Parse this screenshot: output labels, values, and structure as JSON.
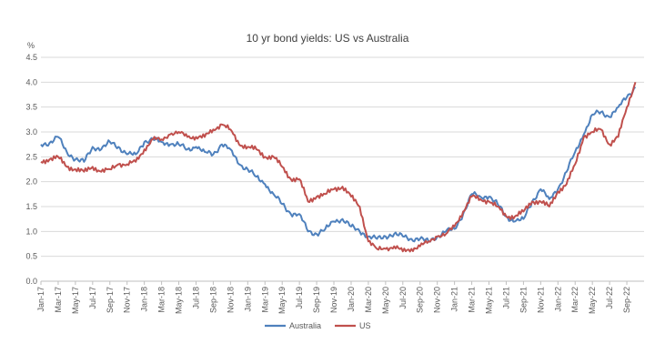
{
  "chart_data": {
    "type": "line",
    "title": "10 yr bond yields: US vs Australia",
    "ylabel": "%",
    "xlabel": "",
    "ylim": [
      0,
      4.5
    ],
    "yticks": [
      "0.0",
      "0.5",
      "1.0",
      "1.5",
      "2.0",
      "2.5",
      "3.0",
      "3.5",
      "4.0",
      "4.5"
    ],
    "x_start": "Jan-17",
    "x_end": "Nov-22",
    "xticks": [
      "Jan-17",
      "Mar-17",
      "May-17",
      "Jul-17",
      "Sep-17",
      "Nov-17",
      "Jan-18",
      "Mar-18",
      "May-18",
      "Jul-18",
      "Sep-18",
      "Nov-18",
      "Jan-19",
      "Mar-19",
      "May-19",
      "Jul-19",
      "Sep-19",
      "Nov-19",
      "Jan-20",
      "Mar-20",
      "May-20",
      "Jul-20",
      "Sep-20",
      "Nov-20",
      "Jan-21",
      "Mar-21",
      "May-21",
      "Jul-21",
      "Sep-21",
      "Nov-21",
      "Jan-22",
      "Mar-22",
      "May-22",
      "Jul-22",
      "Sep-22"
    ],
    "grid": true,
    "legend_position": "bottom",
    "series": [
      {
        "name": "Australia",
        "color": "#4F81BD",
        "x": [
          "Jan-17",
          "Feb-17",
          "Mar-17",
          "Apr-17",
          "May-17",
          "Jun-17",
          "Jul-17",
          "Aug-17",
          "Sep-17",
          "Oct-17",
          "Nov-17",
          "Dec-17",
          "Jan-18",
          "Feb-18",
          "Mar-18",
          "Apr-18",
          "May-18",
          "Jun-18",
          "Jul-18",
          "Aug-18",
          "Sep-18",
          "Oct-18",
          "Nov-18",
          "Dec-18",
          "Jan-19",
          "Feb-19",
          "Mar-19",
          "Apr-19",
          "May-19",
          "Jun-19",
          "Jul-19",
          "Aug-19",
          "Sep-19",
          "Oct-19",
          "Nov-19",
          "Dec-19",
          "Jan-20",
          "Feb-20",
          "Mar-20",
          "Apr-20",
          "May-20",
          "Jun-20",
          "Jul-20",
          "Aug-20",
          "Sep-20",
          "Oct-20",
          "Nov-20",
          "Dec-20",
          "Jan-21",
          "Feb-21",
          "Mar-21",
          "Apr-21",
          "May-21",
          "Jun-21",
          "Jul-21",
          "Aug-21",
          "Sep-21",
          "Oct-21",
          "Nov-21",
          "Dec-21",
          "Jan-22",
          "Feb-22",
          "Mar-22",
          "Apr-22",
          "May-22",
          "Jun-22",
          "Jul-22",
          "Aug-22",
          "Sep-22",
          "Oct-22"
        ],
        "values": [
          2.75,
          2.78,
          2.9,
          2.6,
          2.45,
          2.4,
          2.7,
          2.65,
          2.8,
          2.7,
          2.55,
          2.55,
          2.8,
          2.85,
          2.8,
          2.75,
          2.75,
          2.65,
          2.7,
          2.6,
          2.55,
          2.75,
          2.65,
          2.35,
          2.25,
          2.1,
          1.95,
          1.75,
          1.55,
          1.35,
          1.35,
          1.0,
          0.95,
          1.05,
          1.2,
          1.25,
          1.1,
          1.0,
          0.9,
          0.85,
          0.9,
          0.95,
          0.9,
          0.85,
          0.85,
          0.8,
          0.9,
          1.0,
          1.05,
          1.35,
          1.75,
          1.7,
          1.7,
          1.55,
          1.3,
          1.2,
          1.25,
          1.6,
          1.85,
          1.65,
          1.85,
          2.2,
          2.6,
          2.95,
          3.35,
          3.4,
          3.3,
          3.5,
          3.7,
          3.9
        ]
      },
      {
        "name": "US",
        "color": "#C0504D",
        "x": [
          "Jan-17",
          "Feb-17",
          "Mar-17",
          "Apr-17",
          "May-17",
          "Jun-17",
          "Jul-17",
          "Aug-17",
          "Sep-17",
          "Oct-17",
          "Nov-17",
          "Dec-17",
          "Jan-18",
          "Feb-18",
          "Mar-18",
          "Apr-18",
          "May-18",
          "Jun-18",
          "Jul-18",
          "Aug-18",
          "Sep-18",
          "Oct-18",
          "Nov-18",
          "Dec-18",
          "Jan-19",
          "Feb-19",
          "Mar-19",
          "Apr-19",
          "May-19",
          "Jun-19",
          "Jul-19",
          "Aug-19",
          "Sep-19",
          "Oct-19",
          "Nov-19",
          "Dec-19",
          "Jan-20",
          "Feb-20",
          "Mar-20",
          "Apr-20",
          "May-20",
          "Jun-20",
          "Jul-20",
          "Aug-20",
          "Sep-20",
          "Oct-20",
          "Nov-20",
          "Dec-20",
          "Jan-21",
          "Feb-21",
          "Mar-21",
          "Apr-21",
          "May-21",
          "Jun-21",
          "Jul-21",
          "Aug-21",
          "Sep-21",
          "Oct-21",
          "Nov-21",
          "Dec-21",
          "Jan-22",
          "Feb-22",
          "Mar-22",
          "Apr-22",
          "May-22",
          "Jun-22",
          "Jul-22",
          "Aug-22",
          "Sep-22",
          "Oct-22"
        ],
        "values": [
          2.4,
          2.45,
          2.5,
          2.3,
          2.25,
          2.2,
          2.3,
          2.2,
          2.25,
          2.35,
          2.35,
          2.4,
          2.65,
          2.85,
          2.85,
          2.95,
          3.0,
          2.9,
          2.9,
          2.9,
          3.05,
          3.15,
          3.05,
          2.75,
          2.7,
          2.65,
          2.5,
          2.5,
          2.3,
          2.05,
          2.05,
          1.6,
          1.7,
          1.75,
          1.85,
          1.9,
          1.7,
          1.5,
          0.8,
          0.65,
          0.65,
          0.7,
          0.6,
          0.65,
          0.7,
          0.8,
          0.9,
          0.95,
          1.1,
          1.4,
          1.7,
          1.65,
          1.6,
          1.5,
          1.3,
          1.3,
          1.4,
          1.6,
          1.6,
          1.5,
          1.8,
          1.95,
          2.35,
          2.9,
          3.0,
          3.05,
          2.75,
          2.9,
          3.5,
          4.0
        ]
      }
    ]
  }
}
